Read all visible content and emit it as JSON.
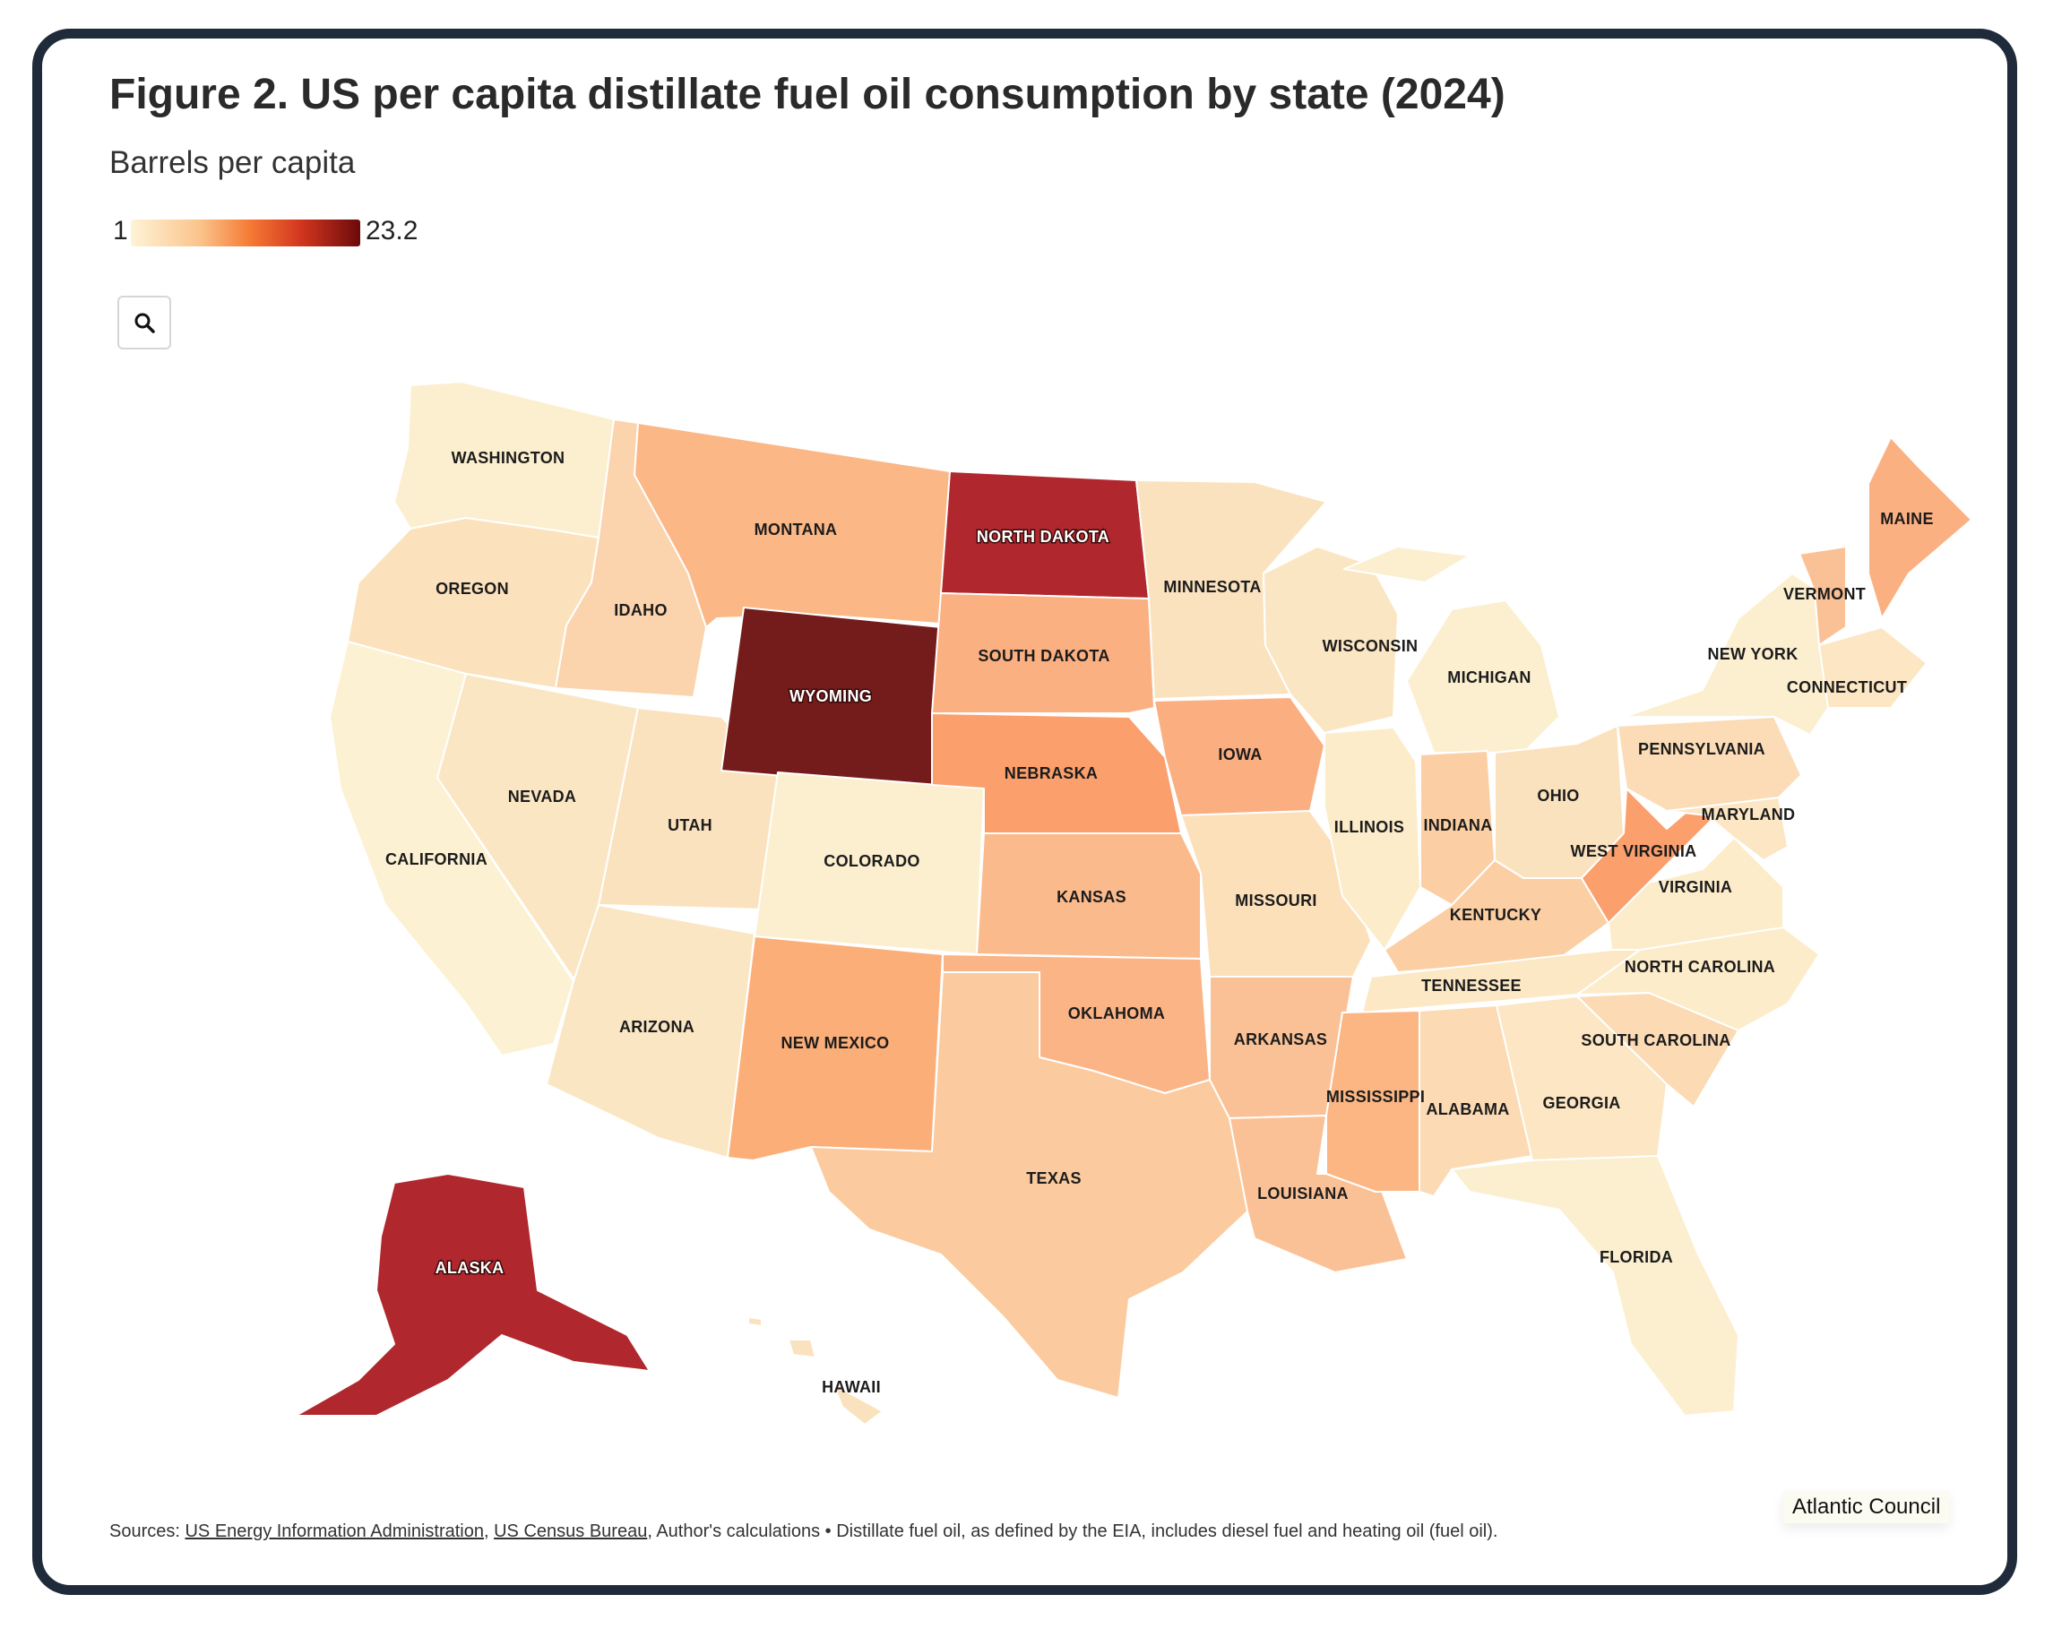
{
  "title": "Figure 2. US per capita distillate fuel oil consumption by state (2024)",
  "subtitle": "Barrels per capita",
  "legend": {
    "min_label": "1",
    "max_label": "23.2",
    "min": 1,
    "max": 23.2,
    "colors": [
      "#fef3d6",
      "#fbc48c",
      "#f57a34",
      "#d3361f",
      "#6c0a0a"
    ]
  },
  "zoom_button": {
    "icon": "search-icon"
  },
  "chart_data": {
    "type": "choropleth",
    "title": "Figure 2. US per capita distillate fuel oil consumption by state (2024)",
    "subtitle": "Barrels per capita",
    "scale": {
      "min": 1,
      "max": 23.2
    },
    "states": [
      {
        "label": "WASHINGTON",
        "color": "#fcefcf"
      },
      {
        "label": "OREGON",
        "color": "#fbe2bd"
      },
      {
        "label": "CALIFORNIA",
        "color": "#fdf1d3"
      },
      {
        "label": "IDAHO",
        "color": "#fbd3ad"
      },
      {
        "label": "NEVADA",
        "color": "#fbe6c3"
      },
      {
        "label": "UTAH",
        "color": "#fbe2bf"
      },
      {
        "label": "ARIZONA",
        "color": "#fbe6c3"
      },
      {
        "label": "MONTANA",
        "color": "#fbb786"
      },
      {
        "label": "WYOMING",
        "color": "#731c1b"
      },
      {
        "label": "COLORADO",
        "color": "#fcefcf"
      },
      {
        "label": "NEW MEXICO",
        "color": "#fbae78"
      },
      {
        "label": "NORTH DAKOTA",
        "color": "#b0282e"
      },
      {
        "label": "SOUTH DAKOTA",
        "color": "#fbb082"
      },
      {
        "label": "NEBRASKA",
        "color": "#fb9f6d"
      },
      {
        "label": "KANSAS",
        "color": "#fbba8c"
      },
      {
        "label": "OKLAHOMA",
        "color": "#fbb486"
      },
      {
        "label": "TEXAS",
        "color": "#fbcb9f"
      },
      {
        "label": "MINNESOTA",
        "color": "#fbe2bf"
      },
      {
        "label": "IOWA",
        "color": "#fbae80"
      },
      {
        "label": "MISSOURI",
        "color": "#fbe0ba"
      },
      {
        "label": "ARKANSAS",
        "color": "#fbc196"
      },
      {
        "label": "LOUISIANA",
        "color": "#fbc196"
      },
      {
        "label": "WISCONSIN",
        "color": "#fbe6c3"
      },
      {
        "label": "ILLINOIS",
        "color": "#fcecca"
      },
      {
        "label": "MICHIGAN",
        "color": "#fcefcf"
      },
      {
        "label": "INDIANA",
        "color": "#fbcfa3"
      },
      {
        "label": "OHIO",
        "color": "#fbe2bf"
      },
      {
        "label": "KENTUCKY",
        "color": "#fbcfa3"
      },
      {
        "label": "TENNESSEE",
        "color": "#fce8c5"
      },
      {
        "label": "MISSISSIPPI",
        "color": "#fbb684"
      },
      {
        "label": "ALABAMA",
        "color": "#fbdab4"
      },
      {
        "label": "GEORGIA",
        "color": "#fce6c3"
      },
      {
        "label": "FLORIDA",
        "color": "#fcefcf"
      },
      {
        "label": "SOUTH CAROLINA",
        "color": "#fbdab4"
      },
      {
        "label": "NORTH CAROLINA",
        "color": "#fcecca"
      },
      {
        "label": "VIRGINIA",
        "color": "#fcecca"
      },
      {
        "label": "WEST VIRGINIA",
        "color": "#fb9f6d"
      },
      {
        "label": "MARYLAND",
        "color": "#fce6c3"
      },
      {
        "label": "PENNSYLVANIA",
        "color": "#fbdcb6"
      },
      {
        "label": "NEW YORK",
        "color": "#fcefcf"
      },
      {
        "label": "VERMONT",
        "color": "#fbc196"
      },
      {
        "label": "MAINE",
        "color": "#fbb082"
      },
      {
        "label": "CONNECTICUT",
        "color": "#fce6c3"
      },
      {
        "label": "ALASKA",
        "color": "#b0282e"
      },
      {
        "label": "HAWAII",
        "color": "#fbe2bf"
      }
    ]
  },
  "footer": {
    "prefix": "Sources: ",
    "link1": "US Energy Information Administration",
    "sep": ", ",
    "link2": "US Census Bureau",
    "suffix": ", Author's calculations • Distillate fuel oil, as defined by the EIA, includes diesel fuel and heating oil (fuel oil)."
  },
  "credit": "Atlantic Council"
}
